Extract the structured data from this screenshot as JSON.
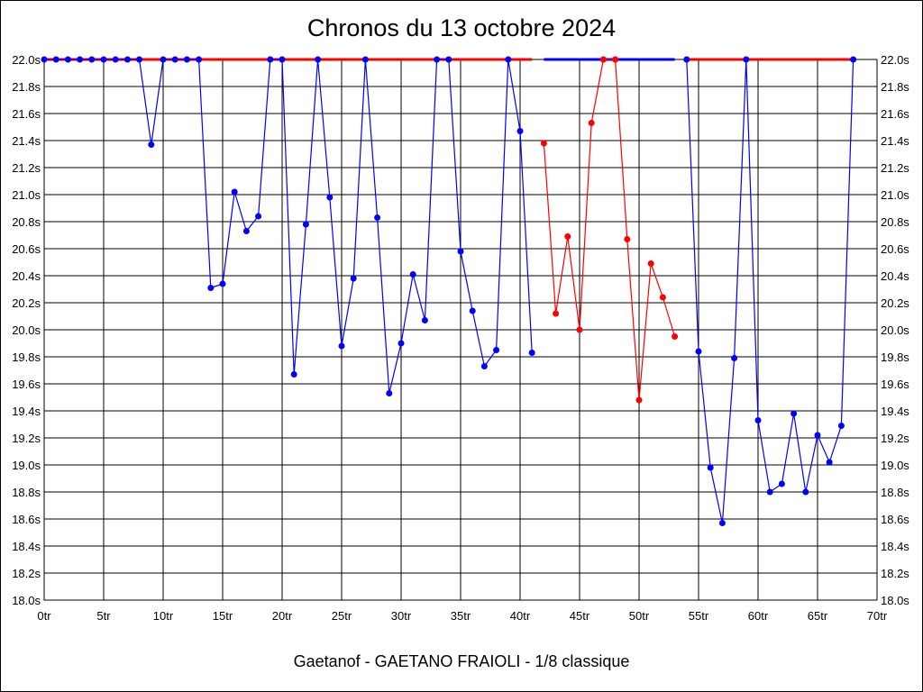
{
  "chart_data": {
    "type": "line",
    "title": "Chronos du 13 octobre 2024",
    "subtitle": "Gaetanof - GAETANO FRAIOLI - 1/8 classique",
    "xlabel": "",
    "ylabel": "",
    "xlim": [
      0,
      70
    ],
    "ylim": [
      18.0,
      22.0
    ],
    "x_ticks": [
      0,
      5,
      10,
      15,
      20,
      25,
      30,
      35,
      40,
      45,
      50,
      55,
      60,
      65,
      70
    ],
    "x_tick_suffix": "tr",
    "y_ticks": [
      18.0,
      18.2,
      18.4,
      18.6,
      18.8,
      19.0,
      19.2,
      19.4,
      19.6,
      19.8,
      20.0,
      20.2,
      20.4,
      20.6,
      20.8,
      21.0,
      21.2,
      21.4,
      21.6,
      21.8,
      22.0
    ],
    "y_tick_suffix": "s",
    "grid": true,
    "colors": {
      "blue": "#0000ff",
      "red": "#ff0000"
    },
    "series": [
      {
        "color": "#0000ff",
        "x": [
          0,
          1,
          2,
          3,
          4,
          5,
          6,
          7,
          8,
          9,
          10,
          11,
          12,
          13,
          14,
          15,
          16,
          17,
          18,
          19,
          20,
          21,
          22,
          23,
          24,
          25,
          26,
          27,
          28,
          29,
          30,
          31,
          32,
          33,
          34,
          35,
          36,
          37,
          38,
          39,
          40,
          41
        ],
        "values": [
          22.0,
          22.0,
          22.0,
          22.0,
          22.0,
          22.0,
          22.0,
          22.0,
          22.0,
          21.37,
          22.0,
          22.0,
          22.0,
          22.0,
          20.31,
          20.34,
          21.02,
          20.73,
          20.84,
          22.0,
          22.0,
          19.67,
          20.78,
          22.0,
          20.98,
          19.88,
          20.38,
          22.0,
          20.83,
          19.53,
          19.9,
          20.41,
          20.07,
          22.0,
          22.0,
          20.58,
          20.14,
          19.73,
          19.85,
          22.0,
          21.47,
          19.83
        ]
      },
      {
        "color": "#ff0000",
        "x": [
          42,
          43,
          44,
          45,
          46,
          47,
          48,
          49,
          50,
          51,
          52,
          53
        ],
        "values": [
          21.38,
          20.12,
          20.69,
          20.0,
          21.53,
          22.0,
          22.0,
          20.67,
          19.48,
          20.49,
          20.24,
          19.95
        ]
      },
      {
        "color": "#0000ff",
        "x": [
          54,
          55,
          56,
          57,
          58,
          59,
          60,
          61,
          62,
          63,
          64,
          65,
          66,
          67,
          68
        ],
        "values": [
          22.0,
          19.84,
          18.98,
          18.57,
          19.79,
          22.0,
          19.33,
          18.8,
          18.86,
          19.38,
          18.8,
          19.22,
          19.02,
          19.29,
          22.0
        ]
      }
    ],
    "top_bars": [
      {
        "color": "#ff0000",
        "from": 0,
        "to": 41
      },
      {
        "color": "#0000ff",
        "from": 42,
        "to": 53
      },
      {
        "color": "#ff0000",
        "from": 54,
        "to": 68
      }
    ]
  }
}
